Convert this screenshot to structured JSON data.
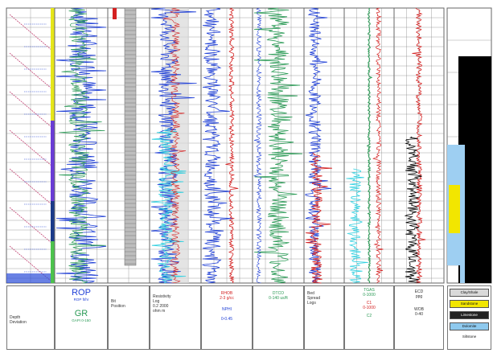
{
  "tracks": [
    {
      "id": "depth",
      "header": [
        "Depth",
        "Deviation"
      ]
    },
    {
      "id": "rop_gr",
      "header_title1": "ROP",
      "header_sub1": "ROP ft/hr",
      "header_title2": "GR",
      "header_sub2": "GAPI 0-150"
    },
    {
      "id": "bit",
      "header": [
        "Bit",
        "Position"
      ]
    },
    {
      "id": "resistivity",
      "header": [
        "Resistivity",
        "Log",
        "0.2 2000",
        "ohm m"
      ]
    },
    {
      "id": "track5",
      "header": [
        "RHOB",
        "2-3 g/cc",
        "NPHI",
        "0-0.45"
      ]
    },
    {
      "id": "track6",
      "header": [
        "DTCO",
        "0-140 us/ft"
      ]
    },
    {
      "id": "track7",
      "header": [
        "Bed",
        "Spread",
        "Logs"
      ]
    },
    {
      "id": "track8",
      "header": [
        "TGAS",
        "0-1000",
        "C1",
        "0-1000",
        "C2"
      ]
    },
    {
      "id": "track9",
      "header": [
        "ECD",
        "ppg",
        "WOB",
        "0-40"
      ]
    }
  ],
  "lithology_legend": [
    {
      "label": "Clay/Shale",
      "color": "#d9d9d9"
    },
    {
      "label": "Sandstone",
      "color": "#f2f200"
    },
    {
      "label": "Limestone",
      "color": "#222222"
    },
    {
      "label": "Dolomite",
      "color": "#8ec9ee"
    },
    {
      "label": "Siltstone",
      "color": "#ffffff"
    }
  ],
  "colors": {
    "grid": "#888888",
    "blue": "#1f3fd6",
    "green": "#2a9a55",
    "red": "#d42020",
    "cyan": "#30d0e0",
    "black": "#000000",
    "yellow": "#f2e600",
    "lightblue": "#9ecff2"
  }
}
